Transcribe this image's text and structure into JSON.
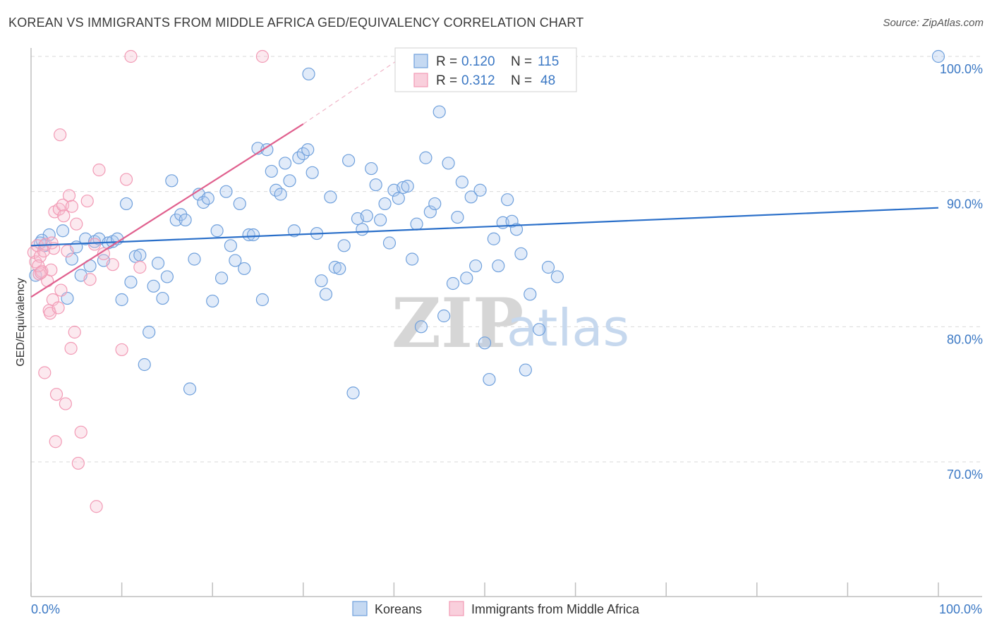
{
  "header": {
    "title": "KOREAN VS IMMIGRANTS FROM MIDDLE AFRICA GED/EQUIVALENCY CORRELATION CHART",
    "source": "Source: ZipAtlas.com"
  },
  "watermark": {
    "zip": "ZIP",
    "atlas": "atlas"
  },
  "colors": {
    "blue": "#6fa0dc",
    "blue_line": "#2a6fc9",
    "pink": "#f29ab5",
    "pink_line": "#e0608e",
    "tick": "#3b78c4",
    "grid": "#d9d9d9"
  },
  "chart_data": {
    "type": "scatter",
    "title": "KOREAN VS IMMIGRANTS FROM MIDDLE AFRICA GED/EQUIVALENCY CORRELATION CHART",
    "xlabel": "",
    "ylabel": "GED/Equivalency",
    "xlim": [
      0,
      100
    ],
    "ylim": [
      60,
      102
    ],
    "x_tick_labels": [
      "0.0%",
      "100.0%"
    ],
    "y_ticks": [
      70,
      80,
      90,
      100
    ],
    "y_tick_labels": [
      "70.0%",
      "80.0%",
      "90.0%",
      "100.0%"
    ],
    "grid": true,
    "legend": {
      "placement": "top-center",
      "entries": [
        {
          "r_label": "R =",
          "r_value": "0.120",
          "n_label": "N =",
          "n_value": "115"
        },
        {
          "r_label": "R =",
          "r_value": "0.312",
          "n_label": "N =",
          "n_value": "48"
        }
      ]
    },
    "bottom_legend": [
      "Koreans",
      "Immigrants from Middle Africa"
    ],
    "series": [
      {
        "name": "Koreans",
        "color": "#6fa0dc",
        "trend": {
          "x": [
            0,
            100
          ],
          "y": [
            86.0,
            88.8
          ]
        },
        "points": [
          [
            1.0,
            86.2
          ],
          [
            1.5,
            86.0
          ],
          [
            2.0,
            86.8
          ],
          [
            3.5,
            87.1
          ],
          [
            4.0,
            82.1
          ],
          [
            4.5,
            85.0
          ],
          [
            5.0,
            85.9
          ],
          [
            5.5,
            83.8
          ],
          [
            6.0,
            86.5
          ],
          [
            6.5,
            84.5
          ],
          [
            7.0,
            86.3
          ],
          [
            7.5,
            86.5
          ],
          [
            8.0,
            84.9
          ],
          [
            8.5,
            86.2
          ],
          [
            9.0,
            86.3
          ],
          [
            9.5,
            86.5
          ],
          [
            10.0,
            82.0
          ],
          [
            10.5,
            89.1
          ],
          [
            11.0,
            83.3
          ],
          [
            11.5,
            85.2
          ],
          [
            12.0,
            85.3
          ],
          [
            12.5,
            77.2
          ],
          [
            13.0,
            79.6
          ],
          [
            13.5,
            83.0
          ],
          [
            14.0,
            84.7
          ],
          [
            14.5,
            82.1
          ],
          [
            15.0,
            83.7
          ],
          [
            15.5,
            90.8
          ],
          [
            16.0,
            87.9
          ],
          [
            16.5,
            88.3
          ],
          [
            17.0,
            87.9
          ],
          [
            17.5,
            75.4
          ],
          [
            18.0,
            85.0
          ],
          [
            18.5,
            89.8
          ],
          [
            19.0,
            89.2
          ],
          [
            19.5,
            89.5
          ],
          [
            20.0,
            81.9
          ],
          [
            20.5,
            87.1
          ],
          [
            21.0,
            83.6
          ],
          [
            21.5,
            90.0
          ],
          [
            22.0,
            86.0
          ],
          [
            22.5,
            84.9
          ],
          [
            23.0,
            89.1
          ],
          [
            23.5,
            84.3
          ],
          [
            24.0,
            86.8
          ],
          [
            24.5,
            86.8
          ],
          [
            25.0,
            93.2
          ],
          [
            25.5,
            82.0
          ],
          [
            26.0,
            93.1
          ],
          [
            26.5,
            91.5
          ],
          [
            27.0,
            90.1
          ],
          [
            27.5,
            89.8
          ],
          [
            28.0,
            92.1
          ],
          [
            28.5,
            90.8
          ],
          [
            29.0,
            87.1
          ],
          [
            29.5,
            92.5
          ],
          [
            30.0,
            92.8
          ],
          [
            30.5,
            93.1
          ],
          [
            31.0,
            91.4
          ],
          [
            31.5,
            86.9
          ],
          [
            32.0,
            83.4
          ],
          [
            32.5,
            82.4
          ],
          [
            33.0,
            89.6
          ],
          [
            33.5,
            84.4
          ],
          [
            34.0,
            84.3
          ],
          [
            34.5,
            86.0
          ],
          [
            35.0,
            92.3
          ],
          [
            35.5,
            75.1
          ],
          [
            36.0,
            88.0
          ],
          [
            36.5,
            87.2
          ],
          [
            37.0,
            88.2
          ],
          [
            37.5,
            91.7
          ],
          [
            38.0,
            90.5
          ],
          [
            38.5,
            87.9
          ],
          [
            39.0,
            89.1
          ],
          [
            39.5,
            86.2
          ],
          [
            40.0,
            90.1
          ],
          [
            40.5,
            89.5
          ],
          [
            41.0,
            90.3
          ],
          [
            41.5,
            90.4
          ],
          [
            42.0,
            85.0
          ],
          [
            42.5,
            87.6
          ],
          [
            43.0,
            80.0
          ],
          [
            43.5,
            92.5
          ],
          [
            44.0,
            88.5
          ],
          [
            44.5,
            89.1
          ],
          [
            45.0,
            95.9
          ],
          [
            45.5,
            80.8
          ],
          [
            46.0,
            92.1
          ],
          [
            46.5,
            83.2
          ],
          [
            47.0,
            88.1
          ],
          [
            47.5,
            90.7
          ],
          [
            48.0,
            83.6
          ],
          [
            48.5,
            89.6
          ],
          [
            49.0,
            84.5
          ],
          [
            49.5,
            90.1
          ],
          [
            50.0,
            78.8
          ],
          [
            50.5,
            76.1
          ],
          [
            51.0,
            86.5
          ],
          [
            51.5,
            84.5
          ],
          [
            52.0,
            87.7
          ],
          [
            52.5,
            89.4
          ],
          [
            53.0,
            87.8
          ],
          [
            53.5,
            87.2
          ],
          [
            54.0,
            85.4
          ],
          [
            54.5,
            76.8
          ],
          [
            55.0,
            82.4
          ],
          [
            56.0,
            79.8
          ],
          [
            57.0,
            84.4
          ],
          [
            58.0,
            83.7
          ],
          [
            30.6,
            98.7
          ],
          [
            48.0,
            100.0
          ],
          [
            100.0,
            100.0
          ],
          [
            0.5,
            83.8
          ],
          [
            1.2,
            86.4
          ]
        ]
      },
      {
        "name": "Immigrants from Middle Africa",
        "color": "#f29ab5",
        "trend": {
          "x": [
            0,
            30
          ],
          "y": [
            82.2,
            95.0
          ]
        },
        "trend_dashed": {
          "x": [
            30,
            41
          ],
          "y": [
            95.0,
            100.0
          ]
        },
        "points": [
          [
            0.3,
            85.5
          ],
          [
            0.5,
            84.8
          ],
          [
            0.7,
            86.0
          ],
          [
            0.9,
            83.9
          ],
          [
            1.0,
            85.2
          ],
          [
            1.2,
            84.1
          ],
          [
            1.4,
            85.6
          ],
          [
            1.6,
            86.1
          ],
          [
            1.8,
            83.4
          ],
          [
            2.0,
            81.2
          ],
          [
            2.1,
            81.0
          ],
          [
            2.2,
            84.2
          ],
          [
            2.4,
            82.0
          ],
          [
            2.5,
            85.8
          ],
          [
            2.6,
            88.5
          ],
          [
            2.7,
            71.5
          ],
          [
            2.8,
            75.0
          ],
          [
            3.0,
            81.4
          ],
          [
            3.1,
            88.7
          ],
          [
            3.2,
            94.2
          ],
          [
            3.3,
            82.7
          ],
          [
            3.5,
            89.0
          ],
          [
            3.6,
            88.2
          ],
          [
            3.8,
            74.3
          ],
          [
            4.0,
            85.6
          ],
          [
            4.2,
            89.7
          ],
          [
            4.4,
            78.4
          ],
          [
            4.5,
            88.9
          ],
          [
            4.8,
            79.6
          ],
          [
            5.0,
            87.6
          ],
          [
            5.2,
            69.9
          ],
          [
            5.5,
            72.2
          ],
          [
            6.2,
            89.3
          ],
          [
            6.5,
            83.5
          ],
          [
            7.0,
            86.1
          ],
          [
            7.2,
            66.7
          ],
          [
            7.5,
            91.6
          ],
          [
            8.0,
            85.4
          ],
          [
            9.0,
            84.6
          ],
          [
            10.0,
            78.3
          ],
          [
            10.5,
            90.9
          ],
          [
            11.0,
            100.0
          ],
          [
            25.5,
            100.0
          ],
          [
            1.5,
            76.6
          ],
          [
            0.8,
            84.5
          ],
          [
            2.3,
            86.2
          ],
          [
            1.1,
            84.0
          ],
          [
            12.0,
            84.4
          ]
        ]
      }
    ]
  }
}
